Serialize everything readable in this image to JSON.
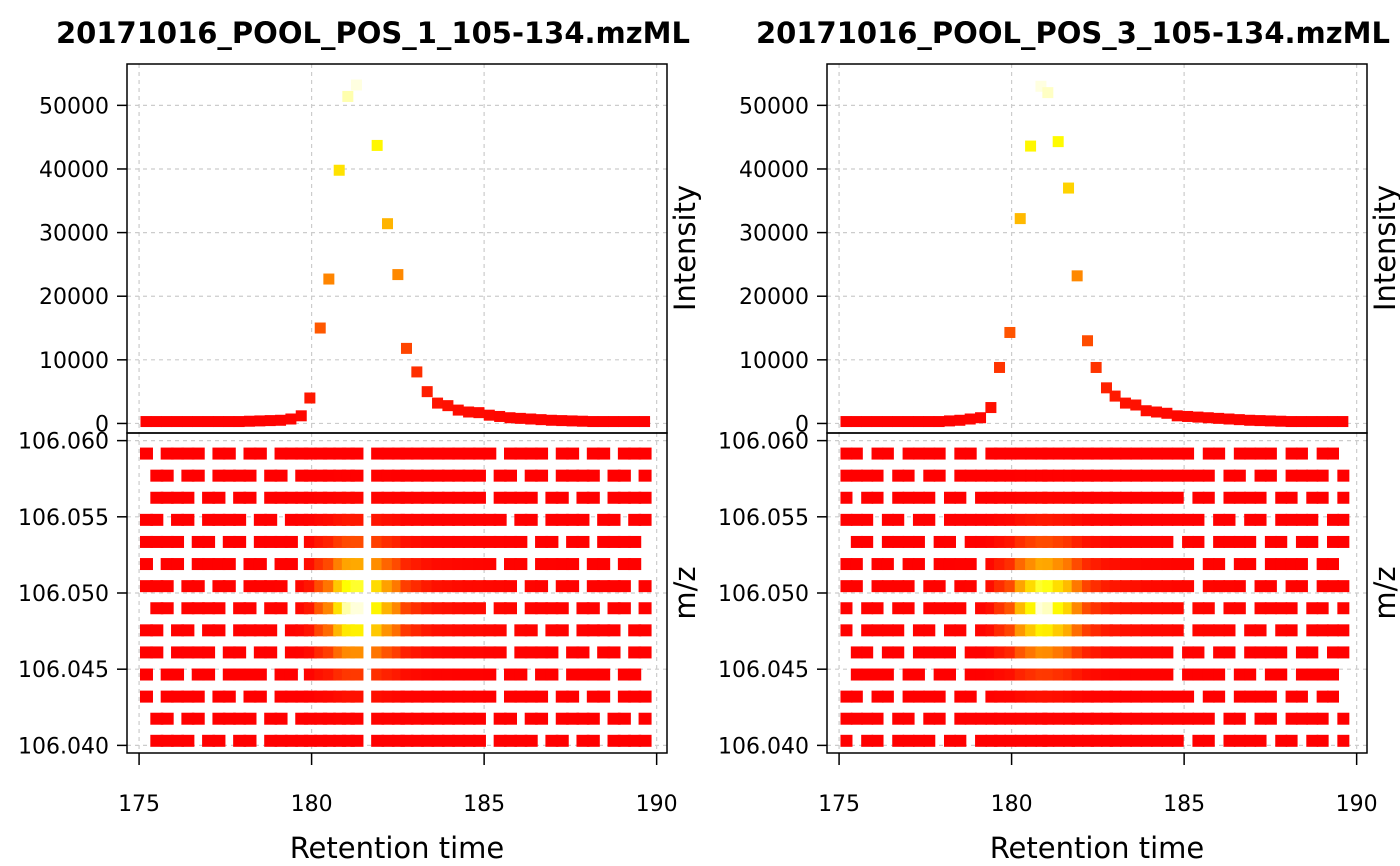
{
  "chart_data": [
    {
      "type": "scatter",
      "title": "20171016_POOL_POS_1_105-134.mzML",
      "top": {
        "ylabel": "Intensity",
        "xlim": [
          174.65,
          190.3
        ],
        "ylim": [
          -1500,
          56500
        ],
        "yticks": [
          "0",
          "10000",
          "20000",
          "30000",
          "40000",
          "50000"
        ],
        "points": [
          [
            175.2,
            300
          ],
          [
            175.5,
            300
          ],
          [
            175.8,
            300
          ],
          [
            176.1,
            300
          ],
          [
            176.4,
            300
          ],
          [
            176.7,
            300
          ],
          [
            177.0,
            300
          ],
          [
            177.3,
            300
          ],
          [
            177.6,
            300
          ],
          [
            177.9,
            300
          ],
          [
            178.2,
            350
          ],
          [
            178.5,
            400
          ],
          [
            178.8,
            450
          ],
          [
            179.1,
            500
          ],
          [
            179.4,
            700
          ],
          [
            179.7,
            1200
          ],
          [
            179.95,
            4000
          ],
          [
            180.25,
            15000
          ],
          [
            180.5,
            22700
          ],
          [
            180.8,
            39800
          ],
          [
            181.05,
            51400
          ],
          [
            181.3,
            53200
          ],
          [
            181.9,
            43700
          ],
          [
            182.2,
            31400
          ],
          [
            182.5,
            23400
          ],
          [
            182.75,
            11800
          ],
          [
            183.05,
            8100
          ],
          [
            183.35,
            5000
          ],
          [
            183.65,
            3200
          ],
          [
            183.95,
            2800
          ],
          [
            184.25,
            2100
          ],
          [
            184.55,
            1800
          ],
          [
            184.85,
            1700
          ],
          [
            185.15,
            1300
          ],
          [
            185.45,
            1100
          ],
          [
            185.75,
            900
          ],
          [
            186.05,
            800
          ],
          [
            186.35,
            700
          ],
          [
            186.65,
            600
          ],
          [
            186.95,
            500
          ],
          [
            187.25,
            450
          ],
          [
            187.55,
            400
          ],
          [
            187.85,
            350
          ],
          [
            188.15,
            300
          ],
          [
            188.45,
            300
          ],
          [
            188.75,
            300
          ],
          [
            189.05,
            300
          ],
          [
            189.35,
            300
          ],
          [
            189.65,
            300
          ]
        ]
      },
      "bottom": {
        "ylabel": "m/z",
        "xlabel": "Retention time",
        "xticks": [
          "175",
          "180",
          "185",
          "190"
        ],
        "ylim": [
          106.0395,
          106.0605
        ],
        "yticks": [
          "106.040",
          "106.045",
          "106.050",
          "106.055",
          "106.060"
        ]
      }
    },
    {
      "type": "scatter",
      "title": "20171016_POOL_POS_3_105-134.mzML",
      "top": {
        "ylabel": "Intensity",
        "xlim": [
          174.65,
          190.3
        ],
        "ylim": [
          -1500,
          56500
        ],
        "yticks": [
          "0",
          "10000",
          "20000",
          "30000",
          "40000",
          "50000"
        ],
        "points": [
          [
            175.2,
            300
          ],
          [
            175.5,
            300
          ],
          [
            175.8,
            300
          ],
          [
            176.1,
            300
          ],
          [
            176.4,
            300
          ],
          [
            176.7,
            300
          ],
          [
            177.0,
            300
          ],
          [
            177.3,
            300
          ],
          [
            177.6,
            300
          ],
          [
            177.9,
            300
          ],
          [
            178.2,
            400
          ],
          [
            178.5,
            500
          ],
          [
            178.8,
            700
          ],
          [
            179.1,
            900
          ],
          [
            179.4,
            2500
          ],
          [
            179.65,
            8800
          ],
          [
            179.95,
            14300
          ],
          [
            180.25,
            32200
          ],
          [
            180.55,
            43600
          ],
          [
            180.85,
            53000
          ],
          [
            181.05,
            52000
          ],
          [
            181.35,
            44300
          ],
          [
            181.65,
            37000
          ],
          [
            181.9,
            23200
          ],
          [
            182.2,
            13000
          ],
          [
            182.45,
            8800
          ],
          [
            182.75,
            5600
          ],
          [
            183.0,
            4300
          ],
          [
            183.3,
            3200
          ],
          [
            183.6,
            2900
          ],
          [
            183.9,
            2000
          ],
          [
            184.2,
            1800
          ],
          [
            184.5,
            1600
          ],
          [
            184.8,
            1200
          ],
          [
            185.1,
            1100
          ],
          [
            185.4,
            1000
          ],
          [
            185.7,
            900
          ],
          [
            186.0,
            800
          ],
          [
            186.3,
            700
          ],
          [
            186.6,
            600
          ],
          [
            186.9,
            500
          ],
          [
            187.2,
            450
          ],
          [
            187.5,
            400
          ],
          [
            187.8,
            350
          ],
          [
            188.1,
            300
          ],
          [
            188.4,
            300
          ],
          [
            188.7,
            300
          ],
          [
            189.0,
            300
          ],
          [
            189.3,
            300
          ],
          [
            189.6,
            300
          ]
        ]
      },
      "bottom": {
        "ylabel": "m/z",
        "xlabel": "Retention time",
        "xticks": [
          "175",
          "180",
          "185",
          "190"
        ],
        "ylim": [
          106.0395,
          106.0605
        ],
        "yticks": [
          "106.040",
          "106.045",
          "106.050",
          "106.055",
          "106.060"
        ]
      }
    }
  ],
  "colors": {
    "low": "#ff0000",
    "mid": "#ff8c00",
    "high": "#ffff00",
    "peak": "#ffffe0"
  }
}
